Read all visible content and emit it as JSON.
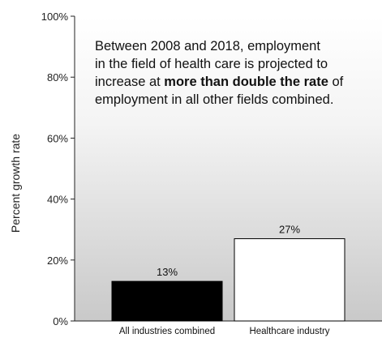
{
  "chart_data": {
    "type": "bar",
    "categories": [
      "All industries combined",
      "Healthcare industry"
    ],
    "values": [
      13,
      27
    ],
    "data_labels": [
      "13%",
      "27%"
    ],
    "title": "",
    "xlabel": "",
    "ylabel": "Percent growth rate",
    "ylim": [
      0,
      100
    ],
    "yticks": [
      0,
      20,
      40,
      60,
      80,
      100
    ],
    "ytick_labels": [
      "0%",
      "20%",
      "40%",
      "60%",
      "80%",
      "100%"
    ],
    "bar_colors": [
      "#000000",
      "#ffffff"
    ],
    "plot_background": "gradient light gray to white",
    "annotation": {
      "line1": "Between 2008 and 2018, employment",
      "line2": "in the field of health care is projected to",
      "line3_pre": "increase at ",
      "line3_bold": "more than double the rate",
      "line3_post": " of",
      "line4": "employment in all other fields combined."
    }
  }
}
